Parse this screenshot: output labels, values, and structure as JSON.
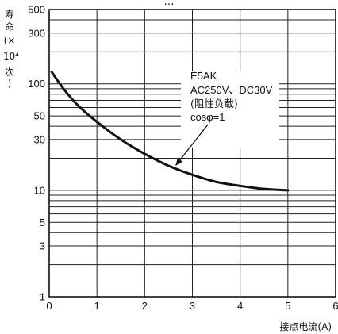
{
  "chart_data": {
    "type": "line",
    "title_fragment": "…",
    "xlabel": "接点电流(A)",
    "ylabel_chars": [
      "寿",
      "命",
      "(×",
      "10⁴",
      "次",
      ")"
    ],
    "x_ticks": [
      "0",
      "1",
      "2",
      "3",
      "4",
      "5",
      "6"
    ],
    "y_tick_values": [
      1,
      3,
      5,
      10,
      30,
      50,
      100,
      300,
      500
    ],
    "y_tick_labels": [
      "1",
      "3",
      "5",
      "10",
      "30",
      "50",
      "100",
      "300",
      "500"
    ],
    "xlim": [
      0,
      6
    ],
    "ylim": [
      1,
      500
    ],
    "y_scale": "log",
    "grid": true,
    "series": [
      {
        "x": [
          0.05,
          0.3,
          0.6,
          1.0,
          1.5,
          2.0,
          2.5,
          3.0,
          3.5,
          4.0,
          4.5,
          5.0
        ],
        "values": [
          130,
          90,
          63,
          44,
          30,
          22,
          17,
          14,
          12,
          11,
          10.3,
          10
        ],
        "color": "#111111"
      }
    ],
    "annotation": {
      "lines": [
        "E5AK",
        "AC250V、DC30V",
        "(阻性负载)",
        "cosφ=1"
      ],
      "arrow_target": [
        2.6,
        16
      ]
    }
  }
}
